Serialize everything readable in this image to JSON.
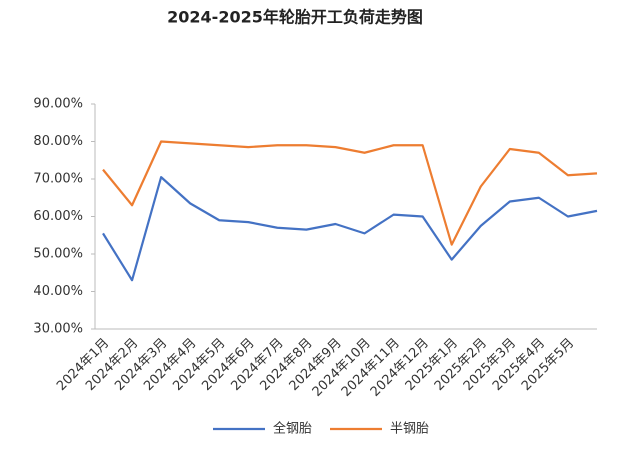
{
  "chart_data": {
    "type": "line",
    "title": "2024-2025年轮胎开工负荷走势图",
    "categories": [
      "2024年1月",
      "2024年2月",
      "2024年3月",
      "2024年4月",
      "2024年5月",
      "2024年6月",
      "2024年7月",
      "2024年8月",
      "2024年9月",
      "2024年10月",
      "2024年11月",
      "2024年12月",
      "2025年1月",
      "2025年2月",
      "2025年3月",
      "2025年4月",
      "2025年5月",
      null
    ],
    "series": [
      {
        "name": "全钢胎",
        "color": "#4472c4",
        "values": [
          55.5,
          43,
          70.5,
          63.5,
          59,
          58.5,
          57,
          56.5,
          58,
          55.5,
          60.5,
          60,
          48.5,
          57.5,
          64,
          65,
          60,
          61.5
        ]
      },
      {
        "name": "半钢胎",
        "color": "#ed7d31",
        "values": [
          72.5,
          63,
          80,
          79.5,
          79,
          78.5,
          79,
          79,
          78.5,
          77,
          79,
          79,
          52.5,
          68,
          78,
          77,
          71,
          71.5
        ]
      }
    ],
    "ylim": [
      30,
      90
    ],
    "yticks": [
      {
        "value": 30,
        "label": "30.00%"
      },
      {
        "value": 40,
        "label": "40.00%"
      },
      {
        "value": 50,
        "label": "50.00%"
      },
      {
        "value": 60,
        "label": "60.00%"
      },
      {
        "value": 70,
        "label": "70.00%"
      },
      {
        "value": 80,
        "label": "80.00%"
      },
      {
        "value": 90,
        "label": "90.00%"
      }
    ],
    "grid": false,
    "legend": "bottom"
  }
}
